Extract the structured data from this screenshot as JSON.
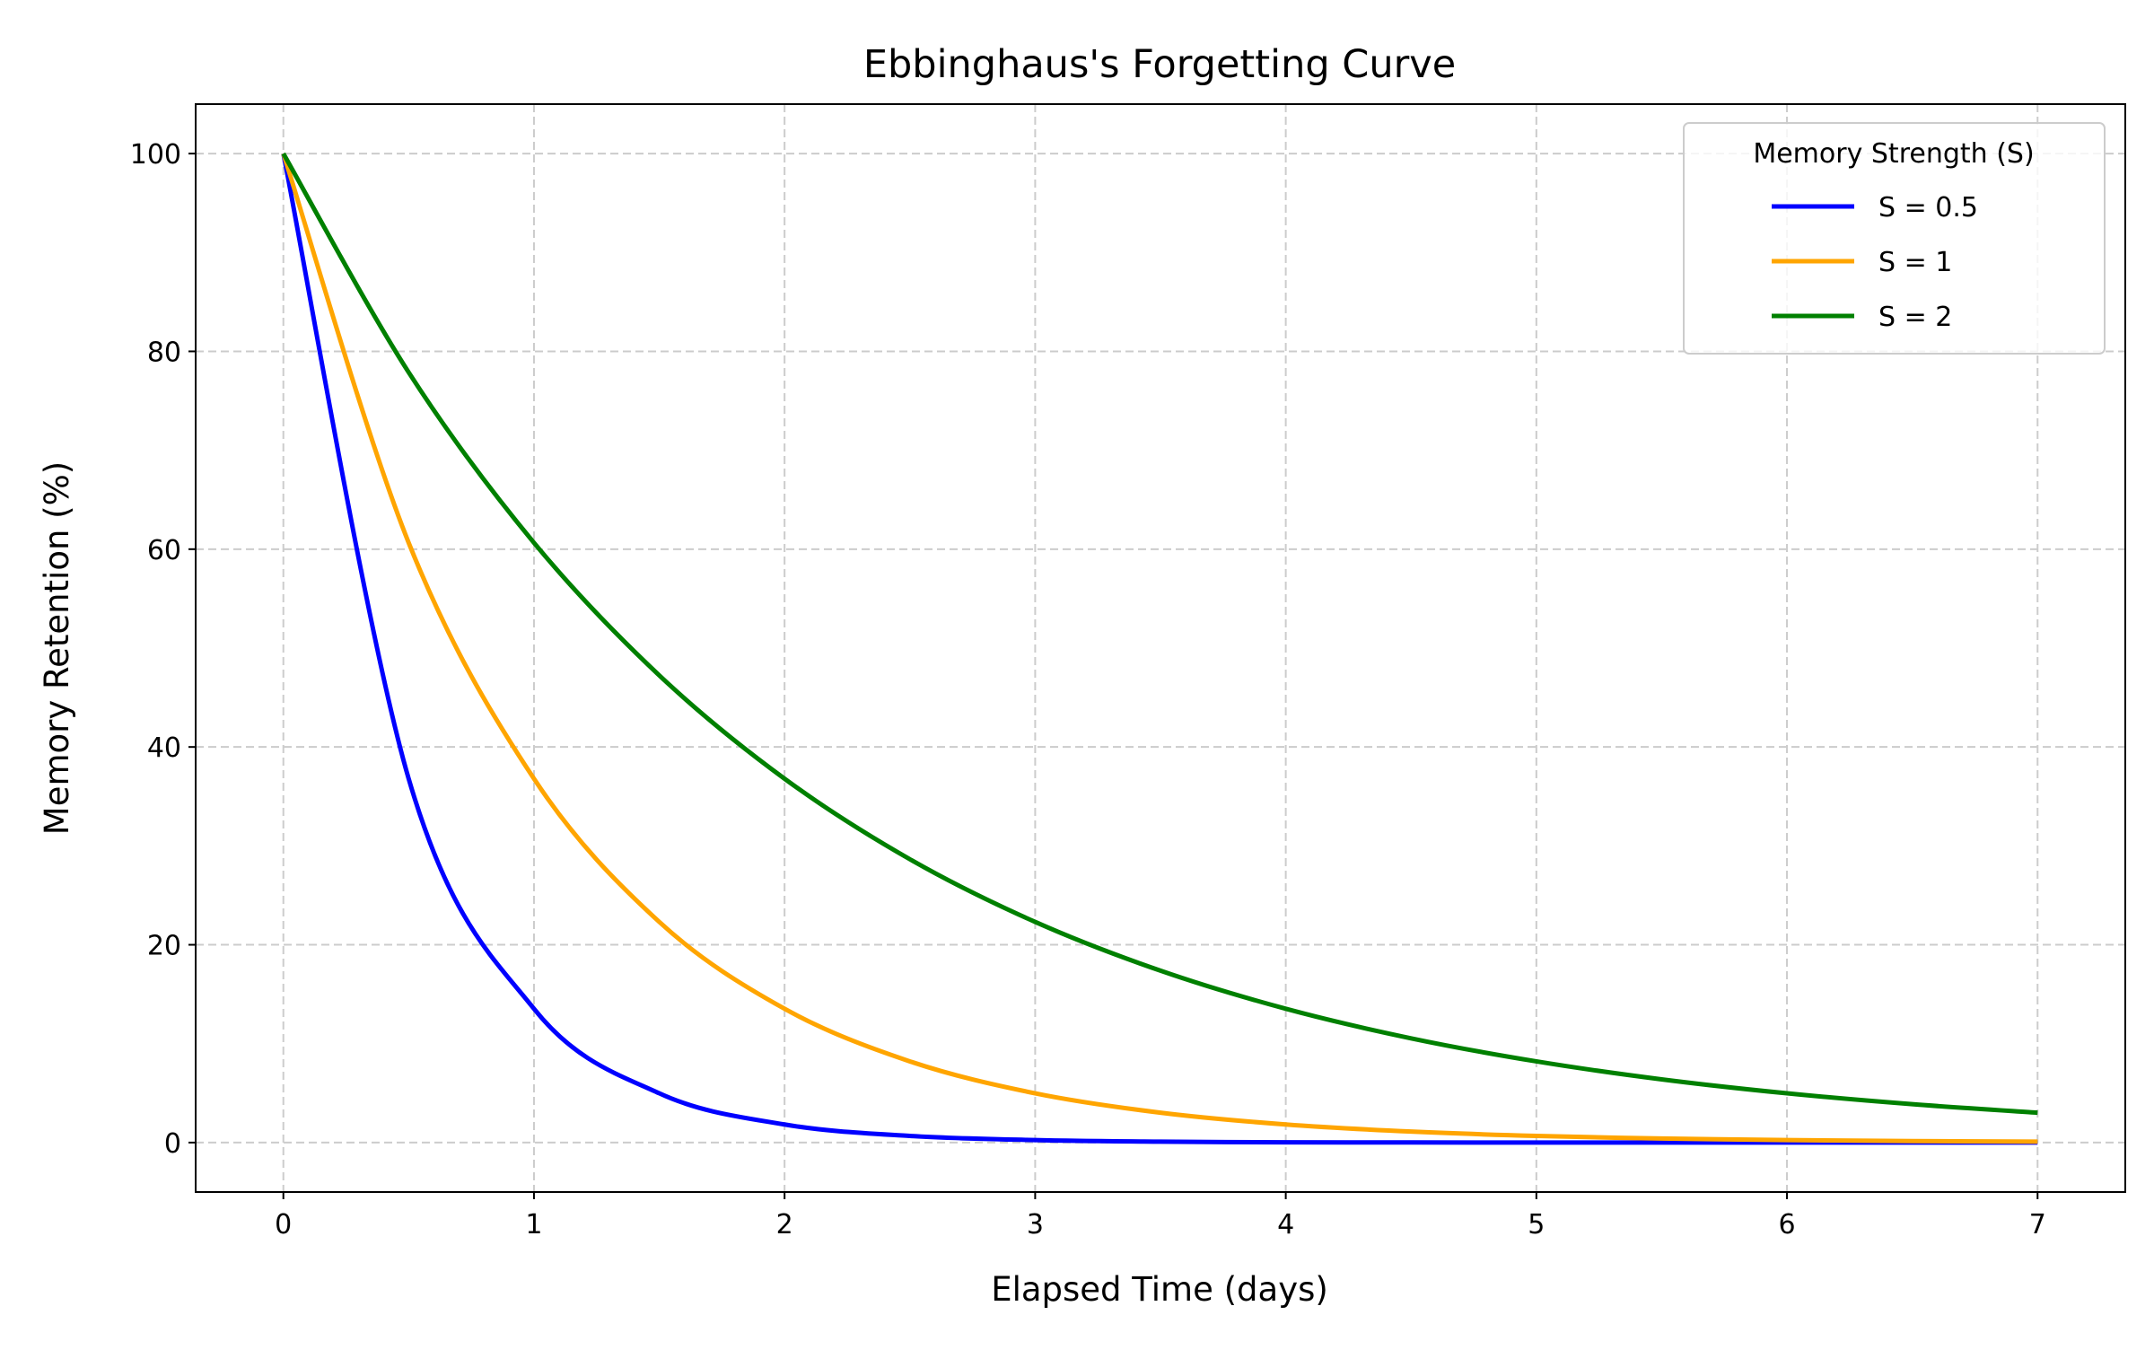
{
  "chart_data": {
    "type": "line",
    "title": "Ebbinghaus's Forgetting Curve",
    "xlabel": "Elapsed Time (days)",
    "ylabel": "Memory Retention (%)",
    "xlim": [
      -0.35,
      7.35
    ],
    "ylim": [
      -5,
      105
    ],
    "xticks": [
      0,
      1,
      2,
      3,
      4,
      5,
      6,
      7
    ],
    "yticks": [
      0,
      20,
      40,
      60,
      80,
      100
    ],
    "grid": true,
    "legend": {
      "title": "Memory Strength (S)",
      "placement": "top-right"
    },
    "x": [
      0,
      0.5,
      1,
      1.5,
      2,
      2.5,
      3,
      3.5,
      4,
      4.5,
      5,
      5.5,
      6,
      6.5,
      7
    ],
    "series": [
      {
        "name": "S = 0.5",
        "color": "#0000ff",
        "values": [
          100,
          36.79,
          13.53,
          4.98,
          1.83,
          0.67,
          0.25,
          0.09,
          0.03,
          0.01,
          0.0,
          0.0,
          0.0,
          0.0,
          0.0
        ]
      },
      {
        "name": "S = 1",
        "color": "#ffa500",
        "values": [
          100,
          60.65,
          36.79,
          22.31,
          13.53,
          8.21,
          4.98,
          3.02,
          1.83,
          1.11,
          0.67,
          0.41,
          0.25,
          0.15,
          0.09
        ]
      },
      {
        "name": "S = 2",
        "color": "#008000",
        "values": [
          100,
          77.88,
          60.65,
          47.24,
          36.79,
          28.65,
          22.31,
          17.38,
          13.53,
          10.54,
          8.21,
          6.39,
          4.98,
          3.88,
          3.02
        ]
      }
    ]
  }
}
